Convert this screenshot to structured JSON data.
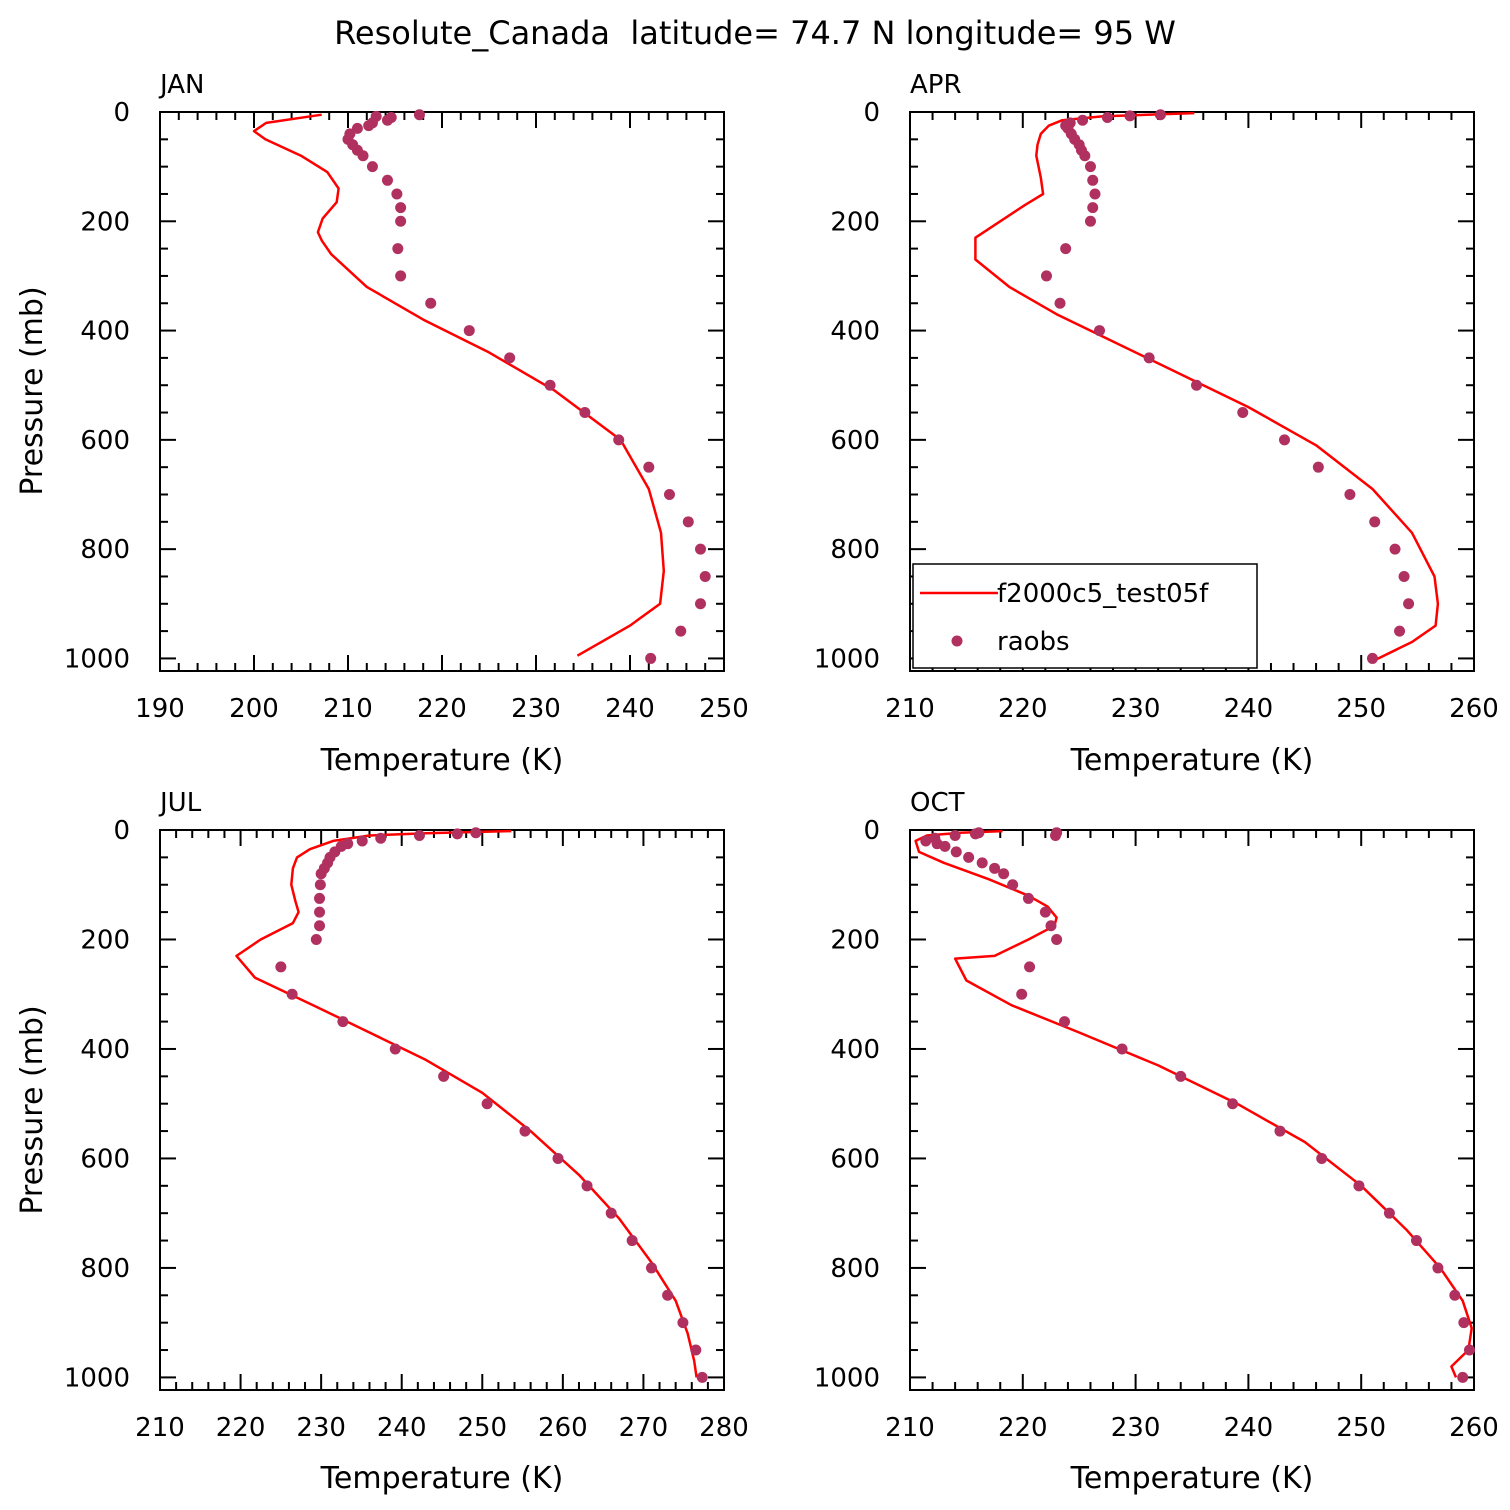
{
  "title": "Resolute_Canada  latitude= 74.7 N longitude= 95 W",
  "colors": {
    "model": "#ff0000",
    "obs": "#b03060",
    "axis": "#000000"
  },
  "legend": {
    "model_label": "f2000c5_test05f",
    "obs_label": "raobs",
    "placement": "bottom-left of APR panel"
  },
  "chart_data": [
    {
      "type": "line+scatter",
      "panel": "JAN",
      "xlabel": "Temperature (K)",
      "ylabel": "Pressure (mb)",
      "xlim": [
        190,
        250
      ],
      "ylim": [
        0,
        1000
      ],
      "xticks": [
        190,
        200,
        210,
        220,
        230,
        240,
        250
      ],
      "yticks": [
        0,
        200,
        400,
        600,
        800,
        1000
      ],
      "model": {
        "t": [
          207.2,
          201.3,
          200.0,
          201.2,
          205.0,
          207.8,
          209.0,
          208.8,
          207.3,
          206.8,
          207.2,
          208.2,
          212.0,
          218.0,
          225.0,
          232.0,
          239.0,
          242.0,
          243.3,
          243.6,
          243.2,
          240.0,
          234.4
        ],
        "p": [
          5,
          20,
          35,
          50,
          80,
          110,
          140,
          165,
          195,
          220,
          235,
          260,
          320,
          380,
          440,
          510,
          600,
          690,
          770,
          840,
          900,
          940,
          995
        ]
      },
      "obs": {
        "t": [
          217.6,
          214.6,
          214.2,
          213.0,
          212.6,
          212.2,
          211.0,
          210.2,
          210.0,
          210.5,
          211.0,
          211.6,
          212.6,
          214.2,
          215.2,
          215.6,
          215.6,
          215.3,
          215.6,
          218.8,
          222.9,
          227.2,
          231.5,
          235.2,
          238.8,
          242.0,
          244.2,
          246.2,
          247.5,
          248.0,
          247.5,
          245.4,
          242.2
        ],
        "p": [
          5,
          10,
          15,
          8,
          20,
          25,
          30,
          40,
          50,
          60,
          70,
          80,
          100,
          125,
          150,
          175,
          200,
          250,
          300,
          350,
          400,
          450,
          500,
          550,
          600,
          650,
          700,
          750,
          800,
          850,
          900,
          950,
          1000
        ]
      }
    },
    {
      "type": "line+scatter",
      "panel": "APR",
      "xlabel": "Temperature (K)",
      "ylabel": "",
      "xlim": [
        210,
        260
      ],
      "ylim": [
        0,
        1000
      ],
      "xticks": [
        210,
        220,
        230,
        240,
        250,
        260
      ],
      "yticks": [
        0,
        200,
        400,
        600,
        800,
        1000
      ],
      "model": {
        "t": [
          235.2,
          227.0,
          223.5,
          222.3,
          221.6,
          221.3,
          221.2,
          221.6,
          221.8,
          220.2,
          215.8,
          215.8,
          218.8,
          223.0,
          228.0,
          234.0,
          240.0,
          246.0,
          251.0,
          254.5,
          256.5,
          256.8,
          256.6,
          254.5,
          252.0,
          251.0
        ],
        "p": [
          2,
          8,
          15,
          25,
          40,
          60,
          80,
          120,
          150,
          170,
          230,
          270,
          320,
          370,
          420,
          480,
          540,
          610,
          690,
          770,
          850,
          900,
          940,
          970,
          995,
          1005
        ]
      },
      "obs": {
        "t": [
          232.2,
          229.5,
          227.5,
          225.3,
          224.2,
          223.8,
          224.0,
          224.3,
          224.6,
          225.0,
          225.2,
          225.5,
          226.0,
          226.2,
          226.4,
          226.2,
          226.0,
          223.8,
          222.1,
          223.3,
          226.8,
          231.2,
          235.4,
          239.5,
          243.2,
          246.2,
          249.0,
          251.2,
          253.0,
          253.8,
          254.2,
          253.4,
          251.0
        ],
        "p": [
          5,
          7,
          10,
          15,
          20,
          25,
          30,
          40,
          50,
          60,
          70,
          80,
          100,
          125,
          150,
          175,
          200,
          250,
          300,
          350,
          400,
          450,
          500,
          550,
          600,
          650,
          700,
          750,
          800,
          850,
          900,
          950,
          1000
        ]
      }
    },
    {
      "type": "line+scatter",
      "panel": "JUL",
      "xlabel": "Temperature (K)",
      "ylabel": "Pressure (mb)",
      "xlim": [
        210,
        280
      ],
      "ylim": [
        0,
        1000
      ],
      "xticks": [
        210,
        220,
        230,
        240,
        250,
        260,
        270,
        280
      ],
      "yticks": [
        0,
        200,
        400,
        600,
        800,
        1000
      ],
      "model": {
        "t": [
          253.6,
          243.0,
          236.0,
          231.5,
          228.6,
          227.0,
          226.5,
          226.3,
          226.8,
          227.2,
          226.5,
          222.5,
          219.5,
          221.8,
          229.0,
          236.0,
          243.0,
          250.0,
          256.0,
          262.0,
          267.0,
          271.0,
          274.0,
          275.5,
          276.3,
          276.6
        ],
        "p": [
          2,
          6,
          10,
          20,
          35,
          50,
          70,
          100,
          130,
          150,
          170,
          200,
          230,
          270,
          320,
          370,
          420,
          480,
          550,
          630,
          710,
          790,
          860,
          920,
          970,
          1000
        ]
      },
      "obs": {
        "t": [
          249.2,
          246.9,
          242.2,
          237.4,
          235.1,
          233.3,
          232.5,
          231.7,
          231.1,
          230.8,
          230.4,
          230.0,
          229.9,
          229.8,
          229.8,
          229.8,
          229.4,
          225.0,
          226.4,
          232.7,
          239.2,
          245.2,
          250.6,
          255.3,
          259.4,
          263.0,
          266.0,
          268.6,
          271.0,
          273.0,
          274.9,
          276.5,
          277.3
        ],
        "p": [
          5,
          7,
          10,
          15,
          20,
          25,
          30,
          40,
          50,
          60,
          70,
          80,
          100,
          125,
          150,
          175,
          200,
          250,
          300,
          350,
          400,
          450,
          500,
          550,
          600,
          650,
          700,
          750,
          800,
          850,
          900,
          950,
          1000
        ]
      }
    },
    {
      "type": "line+scatter",
      "panel": "OCT",
      "xlabel": "Temperature (K)",
      "ylabel": "",
      "xlim": [
        210,
        260
      ],
      "ylim": [
        0,
        1000
      ],
      "xticks": [
        210,
        220,
        230,
        240,
        250,
        260
      ],
      "yticks": [
        0,
        200,
        400,
        600,
        800,
        1000
      ],
      "model": {
        "t": [
          218.2,
          214.5,
          211.5,
          210.5,
          210.8,
          213.0,
          217.0,
          220.5,
          222.2,
          223.0,
          222.8,
          220.5,
          217.5,
          214.0,
          215.0,
          219.0,
          225.0,
          232.0,
          239.0,
          245.0,
          250.0,
          254.0,
          257.0,
          259.0,
          259.8,
          259.5,
          258.0,
          258.4
        ],
        "p": [
          2,
          5,
          10,
          20,
          40,
          60,
          90,
          120,
          140,
          160,
          175,
          200,
          230,
          235,
          275,
          320,
          370,
          430,
          500,
          570,
          650,
          730,
          800,
          860,
          910,
          950,
          980,
          1000
        ]
      },
      "obs": {
        "t": [
          216.1,
          215.8,
          214.0,
          212.2,
          211.4,
          212.4,
          213.1,
          214.1,
          215.2,
          216.4,
          217.5,
          218.3,
          219.1,
          220.5,
          222.0,
          222.5,
          223.0,
          223.0,
          222.9,
          220.6,
          219.9,
          223.7,
          228.8,
          234.0,
          238.6,
          242.8,
          246.5,
          249.8,
          252.5,
          254.9,
          256.8,
          258.3,
          259.1,
          259.6,
          259.0
        ],
        "p": [
          5,
          7,
          10,
          15,
          20,
          25,
          30,
          40,
          50,
          60,
          70,
          80,
          100,
          125,
          150,
          175,
          200,
          5,
          10,
          250,
          300,
          350,
          400,
          450,
          500,
          550,
          600,
          650,
          700,
          750,
          800,
          850,
          900,
          950,
          1000
        ]
      }
    }
  ]
}
